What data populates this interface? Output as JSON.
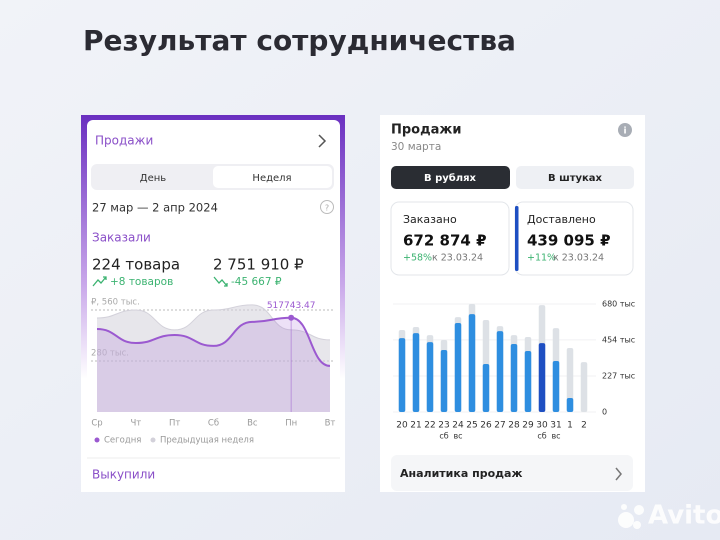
{
  "title": "Результат сотрудничества",
  "left_panel": {
    "header": "Продажи",
    "tabs": [
      "День",
      "Неделя"
    ],
    "selected_tab": 1,
    "period": "27 мар — 2 апр 2024",
    "section": "Заказали",
    "items": "224 товара",
    "items_change": "+8 товаров",
    "amount": "2 751 910 ₽",
    "amount_change": "-45 667 ₽",
    "footer_section": "Выкупили",
    "chart": {
      "type": "area",
      "categories": [
        "Ср",
        "Чт",
        "Пт",
        "Сб",
        "Вс",
        "Пн",
        "Вт"
      ],
      "series": [
        {
          "name": "Сегодня",
          "color": "#9b59d0",
          "values": [
            456,
            379,
            423,
            363,
            495,
            517.74347,
            253
          ],
          "value_labels": [
            null,
            null,
            null,
            null,
            null,
            "517743.47",
            null
          ]
        },
        {
          "name": "Предыдущая неделя",
          "color": "#d3d1da",
          "values": [
            516,
            560,
            451,
            560,
            588,
            451,
            396
          ]
        }
      ],
      "ylim": [
        0,
        615
      ],
      "yticks": [
        {
          "value": 560,
          "label": "₽, 560 тыс."
        },
        {
          "value": 280,
          "label": "280 тыс."
        }
      ],
      "grid": true
    }
  },
  "right_panel": {
    "header": "Продажи",
    "date": "30 марта",
    "buttons": [
      "В рублях",
      "В штуках"
    ],
    "selected_button": 0,
    "cards": [
      {
        "label": "Заказано",
        "value": "672 874 ₽",
        "change": "+58%",
        "compare": "к 23.03.24"
      },
      {
        "label": "Доставлено",
        "value": "439 095 ₽",
        "change": "+11%",
        "compare": "к 23.03.24"
      }
    ],
    "link": "Аналитика продаж",
    "chart": {
      "type": "bar",
      "categories": [
        "20",
        "21",
        "22",
        "23",
        "24",
        "25",
        "26",
        "27",
        "28",
        "29",
        "30",
        "31",
        "1",
        "2"
      ],
      "sublabels": [
        null,
        null,
        null,
        "сб",
        "вс",
        null,
        null,
        null,
        null,
        null,
        "сб",
        "вс",
        null,
        null
      ],
      "series": [
        {
          "color": "#dde1e6",
          "values": [
            516,
            535,
            484,
            453,
            597,
            680,
            579,
            541,
            484,
            472,
            673,
            528,
            403,
            314
          ]
        },
        {
          "color": "#2e8ee0",
          "values": [
            465,
            497,
            440,
            390,
            560,
            616,
            302,
            509,
            428,
            384,
            434,
            321,
            88,
            null
          ]
        }
      ],
      "highlight": {
        "series": 1,
        "index": 10,
        "color": "#1e4fc2"
      },
      "ylim": [
        0,
        680
      ],
      "yticks": [
        0,
        {
          "value": 227,
          "label": "227 тыс"
        },
        {
          "value": 454,
          "label": "454 тыс"
        },
        {
          "value": 680,
          "label": "680 тыс"
        }
      ],
      "grid": true
    }
  },
  "watermark": "Avito"
}
